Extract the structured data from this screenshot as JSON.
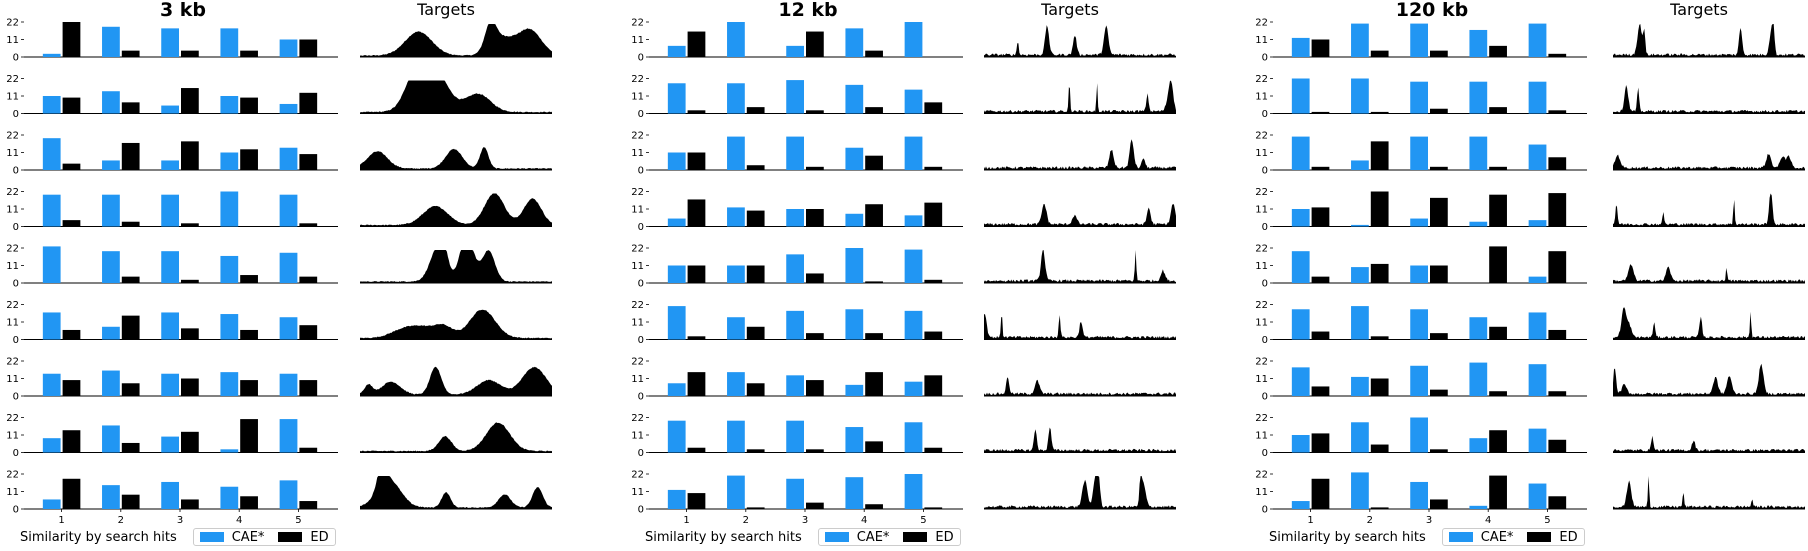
{
  "colors": {
    "cae": "#2196f3",
    "ed": "#000000"
  },
  "legend": {
    "label": "Similarity by search hits",
    "cae": "CAE*",
    "ed": "ED"
  },
  "chart_data": [
    {
      "type": "bar",
      "title": "3 kb",
      "targets_title": "Targets",
      "categories": [
        "1",
        "2",
        "3",
        "4",
        "5"
      ],
      "yticks": [
        "22",
        "11",
        "0"
      ],
      "ylim": [
        0,
        22
      ],
      "rows": [
        {
          "cae": [
            2,
            19,
            18,
            18,
            11
          ],
          "ed": [
            22,
            4,
            4,
            4,
            11
          ]
        },
        {
          "cae": [
            11,
            14,
            5,
            11,
            6
          ],
          "ed": [
            10,
            7,
            16,
            10,
            13
          ]
        },
        {
          "cae": [
            20,
            6,
            6,
            11,
            14
          ],
          "ed": [
            4,
            17,
            18,
            13,
            10
          ]
        },
        {
          "cae": [
            20,
            20,
            20,
            22,
            20
          ],
          "ed": [
            4,
            3,
            2,
            0,
            2
          ]
        },
        {
          "cae": [
            23,
            20,
            20,
            17,
            19
          ],
          "ed": [
            0,
            4,
            2,
            5,
            4
          ]
        },
        {
          "cae": [
            17,
            8,
            17,
            16,
            14
          ],
          "ed": [
            6,
            15,
            7,
            6,
            9
          ]
        },
        {
          "cae": [
            14,
            16,
            14,
            15,
            14
          ],
          "ed": [
            10,
            8,
            11,
            10,
            10
          ]
        },
        {
          "cae": [
            9,
            17,
            10,
            2,
            21
          ],
          "ed": [
            14,
            6,
            13,
            21,
            3
          ]
        },
        {
          "cae": [
            6,
            15,
            17,
            14,
            18
          ],
          "ed": [
            19,
            9,
            6,
            8,
            5
          ]
        }
      ]
    },
    {
      "type": "bar",
      "title": "12 kb",
      "targets_title": "Targets",
      "categories": [
        "1",
        "2",
        "3",
        "4",
        "5"
      ],
      "yticks": [
        "22",
        "11",
        "0"
      ],
      "ylim": [
        0,
        22
      ],
      "rows": [
        {
          "cae": [
            7,
            22,
            7,
            18,
            22
          ],
          "ed": [
            16,
            0,
            16,
            4,
            0
          ]
        },
        {
          "cae": [
            19,
            19,
            21,
            18,
            15
          ],
          "ed": [
            2,
            4,
            2,
            4,
            7
          ]
        },
        {
          "cae": [
            11,
            21,
            21,
            14,
            21
          ],
          "ed": [
            11,
            3,
            2,
            9,
            2
          ]
        },
        {
          "cae": [
            5,
            12,
            11,
            8,
            7
          ],
          "ed": [
            17,
            10,
            11,
            14,
            15
          ]
        },
        {
          "cae": [
            11,
            11,
            18,
            22,
            21
          ],
          "ed": [
            11,
            11,
            6,
            1,
            2
          ]
        },
        {
          "cae": [
            21,
            14,
            18,
            19,
            18
          ],
          "ed": [
            2,
            8,
            4,
            4,
            5
          ]
        },
        {
          "cae": [
            8,
            15,
            13,
            7,
            9
          ],
          "ed": [
            15,
            8,
            10,
            15,
            13
          ]
        },
        {
          "cae": [
            20,
            20,
            20,
            16,
            19
          ],
          "ed": [
            3,
            2,
            2,
            7,
            3
          ]
        },
        {
          "cae": [
            12,
            21,
            19,
            20,
            22
          ],
          "ed": [
            10,
            1,
            4,
            3,
            1
          ]
        }
      ]
    },
    {
      "type": "bar",
      "title": "120 kb",
      "targets_title": "Targets",
      "categories": [
        "1",
        "2",
        "3",
        "4",
        "5"
      ],
      "yticks": [
        "22",
        "11",
        "0"
      ],
      "ylim": [
        0,
        22
      ],
      "rows": [
        {
          "cae": [
            12,
            21,
            21,
            17,
            21
          ],
          "ed": [
            11,
            4,
            4,
            7,
            2
          ]
        },
        {
          "cae": [
            22,
            22,
            20,
            20,
            20
          ],
          "ed": [
            1,
            1,
            3,
            4,
            2
          ]
        },
        {
          "cae": [
            21,
            6,
            21,
            21,
            16
          ],
          "ed": [
            2,
            18,
            2,
            2,
            8
          ]
        },
        {
          "cae": [
            11,
            1,
            5,
            3,
            4
          ],
          "ed": [
            12,
            22,
            18,
            20,
            21
          ]
        },
        {
          "cae": [
            20,
            10,
            11,
            0,
            4
          ],
          "ed": [
            4,
            12,
            11,
            23,
            20
          ]
        },
        {
          "cae": [
            19,
            21,
            19,
            14,
            17
          ],
          "ed": [
            5,
            2,
            4,
            8,
            6
          ]
        },
        {
          "cae": [
            18,
            12,
            19,
            21,
            20
          ],
          "ed": [
            6,
            11,
            4,
            3,
            3
          ]
        },
        {
          "cae": [
            11,
            19,
            22,
            9,
            15
          ],
          "ed": [
            12,
            5,
            2,
            14,
            8
          ]
        },
        {
          "cae": [
            5,
            23,
            17,
            2,
            16
          ],
          "ed": [
            19,
            1,
            6,
            21,
            8
          ]
        }
      ]
    }
  ]
}
